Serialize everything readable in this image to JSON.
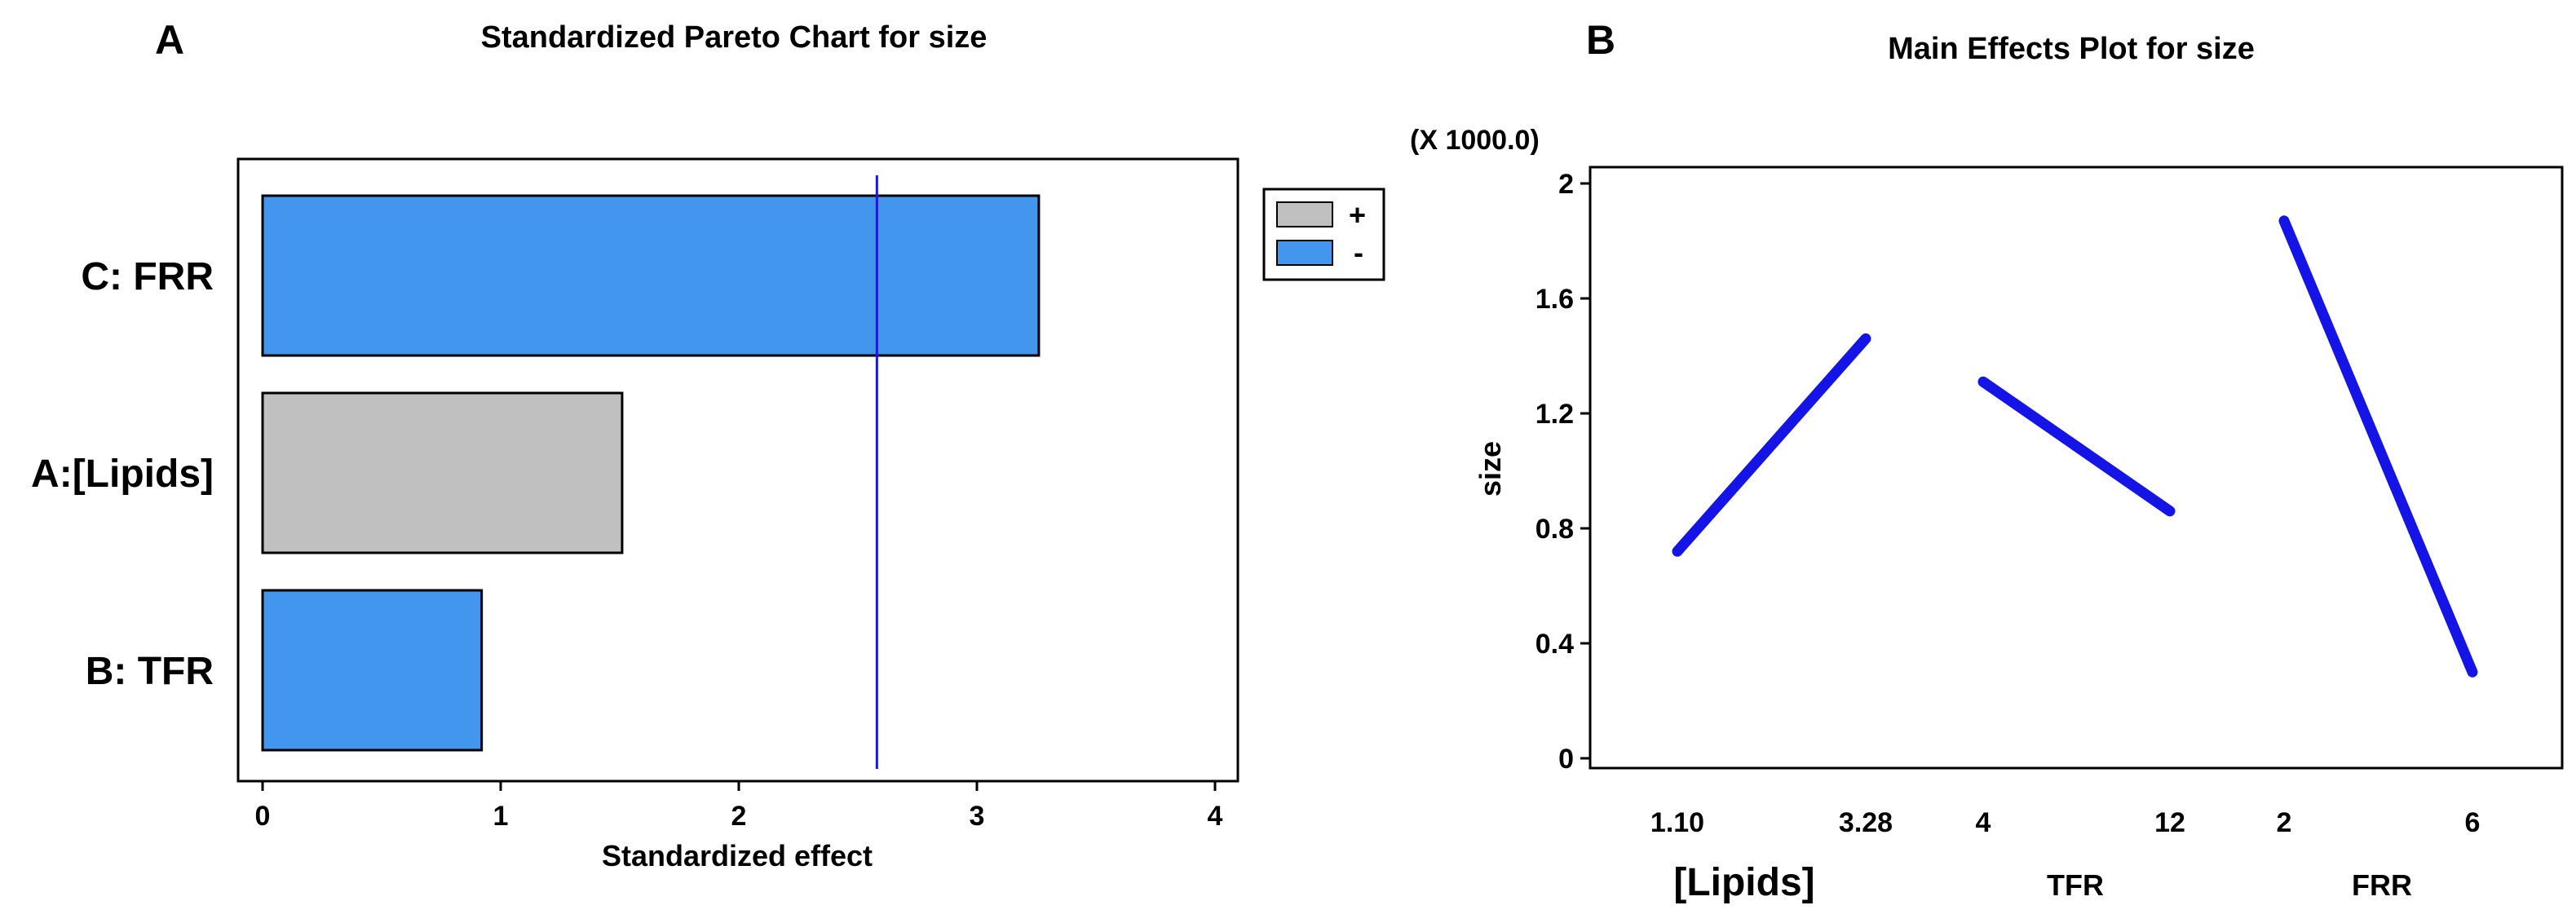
{
  "panel_a_letter": "A",
  "panel_b_letter": "B",
  "chart_data": [
    {
      "type": "bar",
      "orientation": "horizontal",
      "title": "Standardized Pareto Chart for size",
      "categories": [
        "C: FRR",
        "A:[Lipids]",
        "B: TFR"
      ],
      "values": [
        3.26,
        1.51,
        0.92
      ],
      "signs": [
        "-",
        "+",
        "-"
      ],
      "xlabel": "Standardized effect",
      "ylabel": "",
      "xlim": [
        0,
        4
      ],
      "xticks": [
        "0",
        "1",
        "2",
        "3",
        "4"
      ],
      "reference_line": 2.58,
      "legend": [
        {
          "label": "+",
          "color": "#c0c0c0"
        },
        {
          "label": "-",
          "color": "#4296ee"
        }
      ],
      "legend_position": "top-right"
    },
    {
      "type": "line",
      "title": "Main Effects Plot for size",
      "scale_note": "(X 1000.0)",
      "ylabel": "size",
      "ylim": [
        0,
        2
      ],
      "yticks": [
        "0",
        "0.4",
        "0.8",
        "1.2",
        "1.6",
        "2"
      ],
      "line_color": "#1414e6",
      "factors": [
        {
          "name": "[Lipids]",
          "x": [
            "1.10",
            "3.28"
          ],
          "y": [
            0.72,
            1.46
          ]
        },
        {
          "name": "TFR",
          "x": [
            "4",
            "12"
          ],
          "y": [
            1.31,
            0.86
          ]
        },
        {
          "name": "FRR",
          "x": [
            "2",
            "6"
          ],
          "y": [
            1.87,
            0.3
          ]
        }
      ]
    }
  ]
}
